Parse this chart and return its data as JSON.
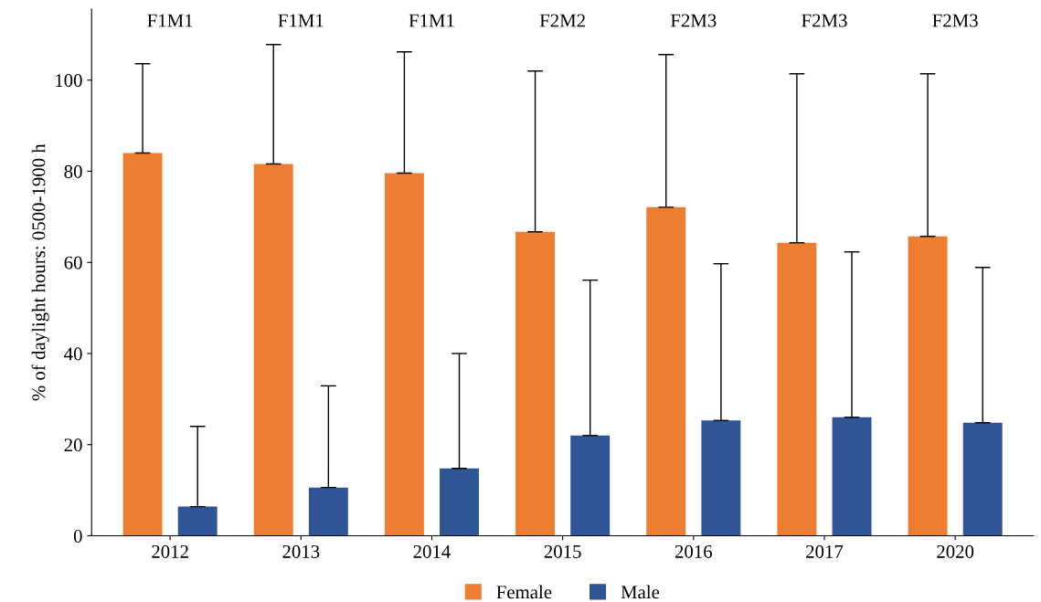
{
  "chart_data": {
    "type": "bar",
    "ylabel": "% of daylight hours: 0500-1900 h",
    "categories": [
      "2012",
      "2013",
      "2014",
      "2015",
      "2016",
      "2017",
      "2020"
    ],
    "series": [
      {
        "name": "Female",
        "color": "#ed7d31",
        "values": [
          84,
          81.6,
          79.6,
          66.7,
          72.1,
          64.3,
          65.7
        ],
        "errors": [
          [
            84,
            103.6
          ],
          [
            81.6,
            107.8
          ],
          [
            79.6,
            106.2
          ],
          [
            66.7,
            102
          ],
          [
            72.1,
            105.6
          ],
          [
            64.3,
            101.4
          ],
          [
            65.7,
            101.4
          ]
        ]
      },
      {
        "name": "Male",
        "color": "#2f5597",
        "values": [
          6.4,
          10.6,
          14.8,
          22,
          25.3,
          26,
          24.8
        ],
        "errors": [
          [
            6.4,
            24
          ],
          [
            10.6,
            32.9
          ],
          [
            14.8,
            40
          ],
          [
            22,
            56.1
          ],
          [
            25.3,
            59.7
          ],
          [
            26,
            62.3
          ],
          [
            24.8,
            58.9
          ]
        ]
      }
    ],
    "ylim": [
      0,
      115.6
    ],
    "yticks": [
      0,
      20,
      40,
      60,
      80,
      100
    ],
    "grid": false,
    "legend": "bottom",
    "annotations": [
      "F1M1",
      "F1M1",
      "F1M1",
      "F2M2",
      "F2M3",
      "F2M3",
      "F2M3"
    ]
  }
}
